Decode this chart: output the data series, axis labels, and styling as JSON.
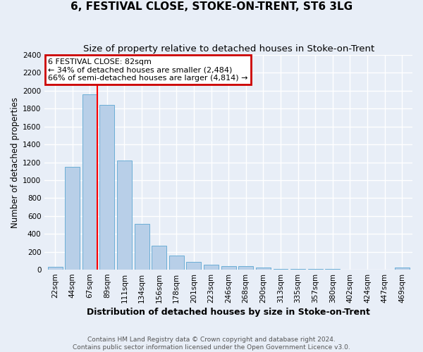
{
  "title": "6, FESTIVAL CLOSE, STOKE-ON-TRENT, ST6 3LG",
  "subtitle": "Size of property relative to detached houses in Stoke-on-Trent",
  "xlabel": "Distribution of detached houses by size in Stoke-on-Trent",
  "ylabel": "Number of detached properties",
  "categories": [
    "22sqm",
    "44sqm",
    "67sqm",
    "89sqm",
    "111sqm",
    "134sqm",
    "156sqm",
    "178sqm",
    "201sqm",
    "223sqm",
    "246sqm",
    "268sqm",
    "290sqm",
    "313sqm",
    "335sqm",
    "357sqm",
    "380sqm",
    "402sqm",
    "424sqm",
    "447sqm",
    "469sqm"
  ],
  "values": [
    30,
    1150,
    1960,
    1840,
    1220,
    510,
    265,
    155,
    88,
    52,
    40,
    40,
    22,
    12,
    8,
    6,
    5,
    4,
    3,
    3,
    22
  ],
  "bar_color": "#b8cfe8",
  "bar_edge_color": "#6baed6",
  "annotation_line1": "6 FESTIVAL CLOSE: 82sqm",
  "annotation_line2": "← 34% of detached houses are smaller (2,484)",
  "annotation_line3": "66% of semi-detached houses are larger (4,814) →",
  "annotation_box_color": "#cc0000",
  "ylim_max": 2400,
  "yticks": [
    0,
    200,
    400,
    600,
    800,
    1000,
    1200,
    1400,
    1600,
    1800,
    2000,
    2200,
    2400
  ],
  "bg_color": "#e8eef7",
  "grid_color": "#ffffff",
  "footer_line1": "Contains HM Land Registry data © Crown copyright and database right 2024.",
  "footer_line2": "Contains public sector information licensed under the Open Government Licence v3.0.",
  "title_fontsize": 11,
  "subtitle_fontsize": 9.5,
  "xlabel_fontsize": 9,
  "ylabel_fontsize": 8.5,
  "tick_fontsize": 7.5,
  "annotation_fontsize": 8,
  "footer_fontsize": 6.5
}
